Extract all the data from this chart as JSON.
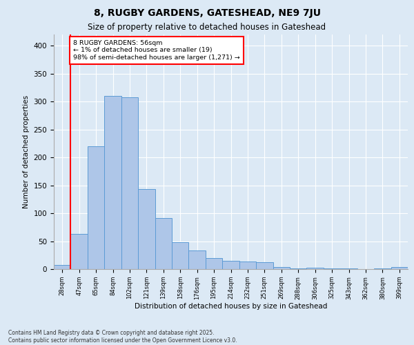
{
  "title1": "8, RUGBY GARDENS, GATESHEAD, NE9 7JU",
  "title2": "Size of property relative to detached houses in Gateshead",
  "xlabel": "Distribution of detached houses by size in Gateshead",
  "ylabel": "Number of detached properties",
  "categories": [
    "28sqm",
    "47sqm",
    "65sqm",
    "84sqm",
    "102sqm",
    "121sqm",
    "139sqm",
    "158sqm",
    "176sqm",
    "195sqm",
    "214sqm",
    "232sqm",
    "251sqm",
    "269sqm",
    "288sqm",
    "306sqm",
    "325sqm",
    "343sqm",
    "362sqm",
    "380sqm",
    "399sqm"
  ],
  "values": [
    8,
    63,
    220,
    310,
    308,
    143,
    92,
    48,
    33,
    20,
    15,
    13,
    12,
    4,
    1,
    2,
    1,
    1,
    0,
    1,
    4
  ],
  "bar_color": "#aec6e8",
  "bar_edge_color": "#5b9bd5",
  "background_color": "#dce9f5",
  "plot_bg_color": "#dce9f5",
  "vline_x": 0.5,
  "vline_color": "red",
  "annotation_text": "8 RUGBY GARDENS: 56sqm\n← 1% of detached houses are smaller (19)\n98% of semi-detached houses are larger (1,271) →",
  "annotation_box_color": "white",
  "annotation_border_color": "red",
  "footer_text": "Contains HM Land Registry data © Crown copyright and database right 2025.\nContains public sector information licensed under the Open Government Licence v3.0.",
  "ylim": [
    0,
    420
  ],
  "yticks": [
    0,
    50,
    100,
    150,
    200,
    250,
    300,
    350,
    400
  ]
}
